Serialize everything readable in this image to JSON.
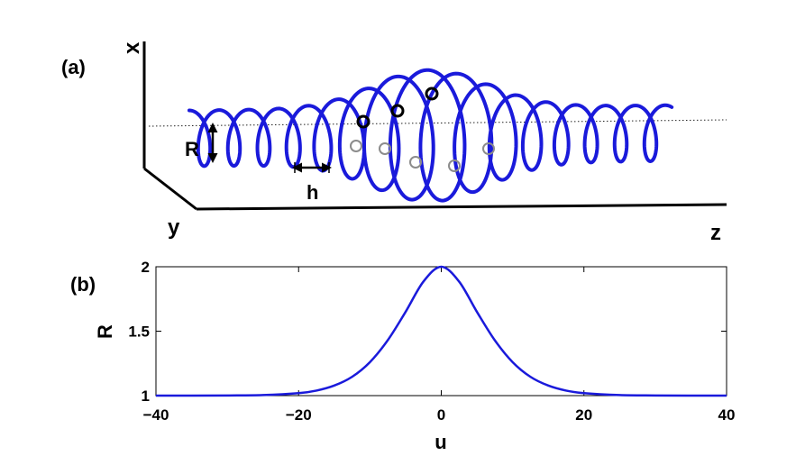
{
  "panel_a": {
    "label": "(a)",
    "axis_x": "x",
    "axis_y": "y",
    "axis_z": "z",
    "radius_label": "R",
    "pitch_label": "h",
    "helix_color": "#1a1adb",
    "black_markers": 3,
    "gray_markers": 5
  },
  "panel_b": {
    "label": "(b)"
  },
  "chart_data": {
    "type": "line",
    "xlabel": "u",
    "ylabel": "R",
    "xlim": [
      -40,
      40
    ],
    "ylim": [
      1,
      2
    ],
    "xticks": [
      "−40",
      "−20",
      "0",
      "20",
      "40"
    ],
    "yticks": [
      "1",
      "1.5",
      "2"
    ],
    "grid": false,
    "series": [
      {
        "color": "#1a1adb",
        "x": [
          -40,
          -35,
          -30,
          -25,
          -20,
          -17.5,
          -15,
          -12.5,
          -10,
          -7.5,
          -5,
          -2.5,
          0,
          2.5,
          5,
          7.5,
          10,
          12.5,
          15,
          17.5,
          20,
          25,
          30,
          35,
          40
        ],
        "y": [
          1.0,
          1.0,
          1.001,
          1.004,
          1.019,
          1.039,
          1.078,
          1.146,
          1.26,
          1.43,
          1.65,
          1.885,
          2.0,
          1.885,
          1.65,
          1.43,
          1.26,
          1.146,
          1.078,
          1.039,
          1.019,
          1.004,
          1.001,
          1.0,
          1.0
        ]
      }
    ]
  }
}
